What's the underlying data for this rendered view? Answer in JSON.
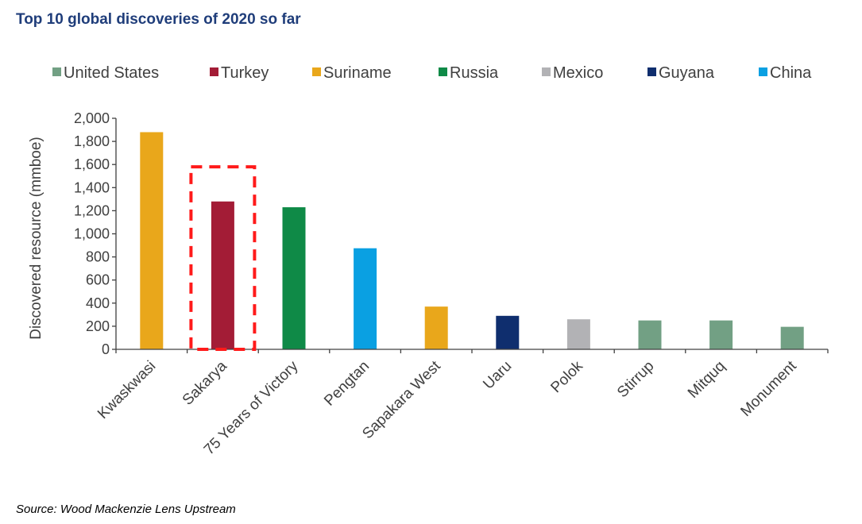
{
  "header": {
    "title": "Top 10 global discoveries of 2020 so far"
  },
  "footer": {
    "source": "Source: Wood Mackenzie Lens Upstream"
  },
  "chart_data": {
    "type": "bar",
    "title": "Top 10 global discoveries of 2020 so far",
    "xlabel": "",
    "ylabel": "Discovered resource (mmboe)",
    "ylim": [
      0,
      2000
    ],
    "yticks": [
      0,
      200,
      400,
      600,
      800,
      1000,
      1200,
      1400,
      1600,
      1800,
      2000
    ],
    "ytick_labels": [
      "0",
      "200",
      "400",
      "600",
      "800",
      "1,000",
      "1,200",
      "1,400",
      "1,600",
      "1,800",
      "2,000"
    ],
    "legend": [
      {
        "name": "United States",
        "color": "#72a084"
      },
      {
        "name": "Turkey",
        "color": "#a31c36"
      },
      {
        "name": "Suriname",
        "color": "#e9a71b"
      },
      {
        "name": "Russia",
        "color": "#0f8a47"
      },
      {
        "name": "Mexico",
        "color": "#b2b2b5"
      },
      {
        "name": "Guyana",
        "color": "#0f2e6e"
      },
      {
        "name": "China",
        "color": "#0aa0e2"
      }
    ],
    "categories": [
      "Kwaskwasi",
      "Sakarya",
      "75 Years of Victory",
      "Pengtan",
      "Sapakara West",
      "Uaru",
      "Polok",
      "Stirrup",
      "Mitquq",
      "Monument"
    ],
    "values": [
      1880,
      1280,
      1230,
      875,
      370,
      290,
      260,
      250,
      250,
      195
    ],
    "countries": [
      "Suriname",
      "Turkey",
      "Russia",
      "China",
      "Suriname",
      "Guyana",
      "Mexico",
      "United States",
      "United States",
      "United States"
    ],
    "highlight": {
      "category": "Sakarya",
      "top_value": 1580,
      "color": "#ff1a1a",
      "style": "dashed"
    },
    "grid": false,
    "legend_position": "top"
  }
}
